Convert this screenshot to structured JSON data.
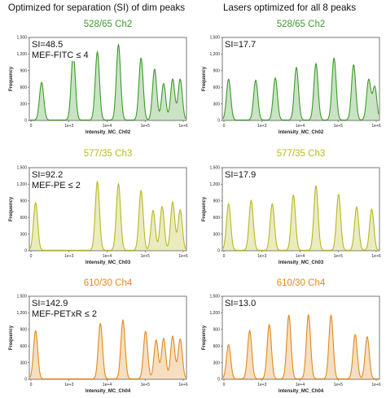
{
  "headers": {
    "left": "Optimized for separation (SI) of dim peaks",
    "right": "Lasers optimized for all 8 peaks"
  },
  "colors": {
    "Ch2": "#3d9b2a",
    "Ch3": "#b8b81e",
    "Ch4": "#e08a1c"
  },
  "chart_data": [
    {
      "type": "area",
      "row": 0,
      "col": 0,
      "color": "#3d9b2a",
      "title": "528/65 Ch2",
      "xlabel": "Intensity_MC_Ch02",
      "ylabel": "Frequency",
      "xticks": [
        "0",
        "1e+3",
        "1e+4",
        "1e+5",
        "1e+6"
      ],
      "yticks": [
        "0",
        "300",
        "600",
        "900",
        "1,200",
        "1,500"
      ],
      "ylim": [
        0,
        1500
      ],
      "annotations": [
        "SI=48.5",
        "MEF-FITC ≤ 4"
      ],
      "peaks": [
        {
          "x": 0.06,
          "y": 680
        },
        {
          "x": 0.27,
          "y": 1200
        },
        {
          "x": 0.43,
          "y": 1230
        },
        {
          "x": 0.57,
          "y": 1360
        },
        {
          "x": 0.72,
          "y": 1120
        },
        {
          "x": 0.81,
          "y": 920
        },
        {
          "x": 0.87,
          "y": 660
        },
        {
          "x": 0.93,
          "y": 740
        },
        {
          "x": 0.98,
          "y": 740
        }
      ]
    },
    {
      "type": "area",
      "row": 0,
      "col": 1,
      "color": "#3d9b2a",
      "title": "528/65 Ch2",
      "xlabel": "Intensity_MC_Ch02",
      "ylabel": "Frequency",
      "xticks": [
        "0",
        "1e+3",
        "1e+4",
        "1e+5",
        "1e+6"
      ],
      "yticks": [
        "0",
        "300",
        "600",
        "900",
        "1,200",
        "1,500"
      ],
      "ylim": [
        0,
        1500
      ],
      "annotations": [
        "SI=17.7"
      ],
      "peaks": [
        {
          "x": 0.02,
          "y": 740
        },
        {
          "x": 0.2,
          "y": 720
        },
        {
          "x": 0.33,
          "y": 760
        },
        {
          "x": 0.47,
          "y": 950
        },
        {
          "x": 0.6,
          "y": 1020
        },
        {
          "x": 0.72,
          "y": 1120
        },
        {
          "x": 0.85,
          "y": 1000
        },
        {
          "x": 0.95,
          "y": 730
        },
        {
          "x": 0.99,
          "y": 600
        }
      ]
    },
    {
      "type": "area",
      "row": 1,
      "col": 0,
      "color": "#b8b81e",
      "title": "577/35 Ch3",
      "xlabel": "Intensity_MC_Ch03",
      "ylabel": "Frequency",
      "xticks": [
        "0",
        "1e+3",
        "1e+4",
        "1e+5",
        "1e+6"
      ],
      "yticks": [
        "0",
        "300",
        "600",
        "900",
        "1,200",
        "1,500"
      ],
      "ylim": [
        0,
        1500
      ],
      "annotations": [
        "SI=92.2",
        "MEF-PE ≤ 2"
      ],
      "peaks": [
        {
          "x": 0.02,
          "y": 860
        },
        {
          "x": 0.43,
          "y": 1240
        },
        {
          "x": 0.57,
          "y": 1200
        },
        {
          "x": 0.72,
          "y": 1080
        },
        {
          "x": 0.8,
          "y": 720
        },
        {
          "x": 0.86,
          "y": 790
        },
        {
          "x": 0.93,
          "y": 870
        },
        {
          "x": 0.98,
          "y": 730
        }
      ]
    },
    {
      "type": "area",
      "row": 1,
      "col": 1,
      "color": "#b8b81e",
      "title": "577/35 Ch3",
      "xlabel": "Intensity_MC_Ch03",
      "ylabel": "Frequency",
      "xticks": [
        "0",
        "1e+3",
        "1e+4",
        "1e+5",
        "1e+6"
      ],
      "yticks": [
        "0",
        "300",
        "600",
        "900",
        "1,200",
        "1,500"
      ],
      "ylim": [
        0,
        1500
      ],
      "annotations": [
        "SI=17.9"
      ],
      "peaks": [
        {
          "x": 0.02,
          "y": 840
        },
        {
          "x": 0.17,
          "y": 900
        },
        {
          "x": 0.31,
          "y": 840
        },
        {
          "x": 0.45,
          "y": 1000
        },
        {
          "x": 0.6,
          "y": 1160
        },
        {
          "x": 0.75,
          "y": 1010
        },
        {
          "x": 0.87,
          "y": 780
        },
        {
          "x": 0.97,
          "y": 740
        }
      ]
    },
    {
      "type": "area",
      "row": 2,
      "col": 0,
      "color": "#e08a1c",
      "title": "610/30 Ch4",
      "xlabel": "Intensity_MC_Ch04",
      "ylabel": "Frequency",
      "xticks": [
        "0",
        "1e+3",
        "1e+4",
        "1e+5",
        "1e+6"
      ],
      "yticks": [
        "0",
        "300",
        "600",
        "900",
        "1,200",
        "1,500"
      ],
      "ylim": [
        0,
        1500
      ],
      "annotations": [
        "SI=142.9",
        "MEF-PETxR ≤ 2"
      ],
      "peaks": [
        {
          "x": 0.02,
          "y": 870
        },
        {
          "x": 0.45,
          "y": 1000
        },
        {
          "x": 0.6,
          "y": 1060
        },
        {
          "x": 0.75,
          "y": 860
        },
        {
          "x": 0.82,
          "y": 700
        },
        {
          "x": 0.87,
          "y": 730
        },
        {
          "x": 0.93,
          "y": 770
        },
        {
          "x": 0.98,
          "y": 720
        }
      ]
    },
    {
      "type": "area",
      "row": 2,
      "col": 1,
      "color": "#e08a1c",
      "title": "610/30 Ch4",
      "xlabel": "Intensity_MC_Ch04",
      "ylabel": "Frequency",
      "xticks": [
        "0",
        "1e+3",
        "1e+4",
        "1e+5",
        "1e+6"
      ],
      "yticks": [
        "0",
        "300",
        "600",
        "900",
        "1,200",
        "1,500"
      ],
      "ylim": [
        0,
        1500
      ],
      "annotations": [
        "SI=13.0"
      ],
      "peaks": [
        {
          "x": 0.02,
          "y": 620
        },
        {
          "x": 0.16,
          "y": 870
        },
        {
          "x": 0.29,
          "y": 980
        },
        {
          "x": 0.42,
          "y": 1150
        },
        {
          "x": 0.55,
          "y": 1160
        },
        {
          "x": 0.7,
          "y": 1150
        },
        {
          "x": 0.86,
          "y": 800
        },
        {
          "x": 0.94,
          "y": 760
        }
      ]
    }
  ]
}
